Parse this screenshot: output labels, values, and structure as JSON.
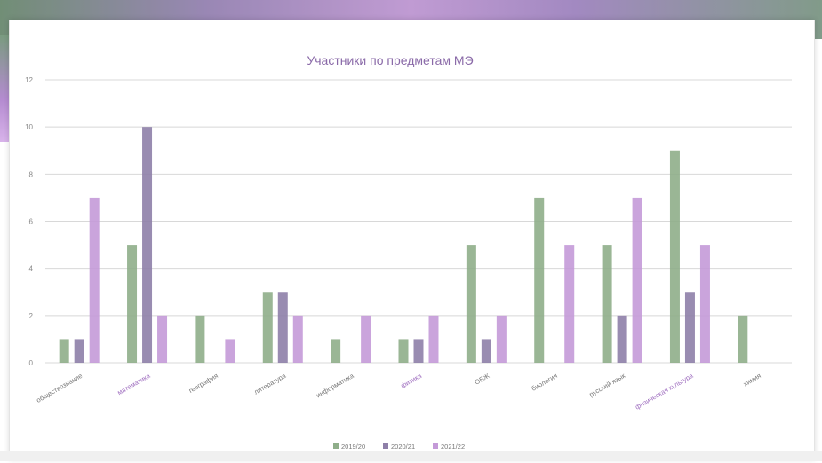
{
  "chart_data": {
    "type": "bar",
    "title": "Участники по предметам МЭ",
    "xlabel": "",
    "ylabel": "",
    "ylim": [
      0,
      12
    ],
    "yticks": [
      0,
      2,
      4,
      6,
      8,
      10,
      12
    ],
    "grid": true,
    "legend_position": "bottom",
    "categories": [
      "обществознание",
      "математика",
      "география",
      "литература",
      "информатика",
      "физика",
      "ОБЖ",
      "биология",
      "русский язык",
      "физическая культура",
      "химия"
    ],
    "series": [
      {
        "name": "2019/20",
        "color": "#8fae8a",
        "values": [
          1,
          5,
          2,
          3,
          1,
          1,
          5,
          7,
          5,
          9,
          2
        ]
      },
      {
        "name": "2020/21",
        "color": "#8e7fa8",
        "values": [
          1,
          10,
          0,
          3,
          0,
          1,
          1,
          0,
          2,
          3,
          0
        ]
      },
      {
        "name": "2021/22",
        "color": "#c49ad8",
        "values": [
          7,
          2,
          1,
          2,
          2,
          2,
          2,
          5,
          7,
          5,
          0
        ]
      }
    ]
  }
}
